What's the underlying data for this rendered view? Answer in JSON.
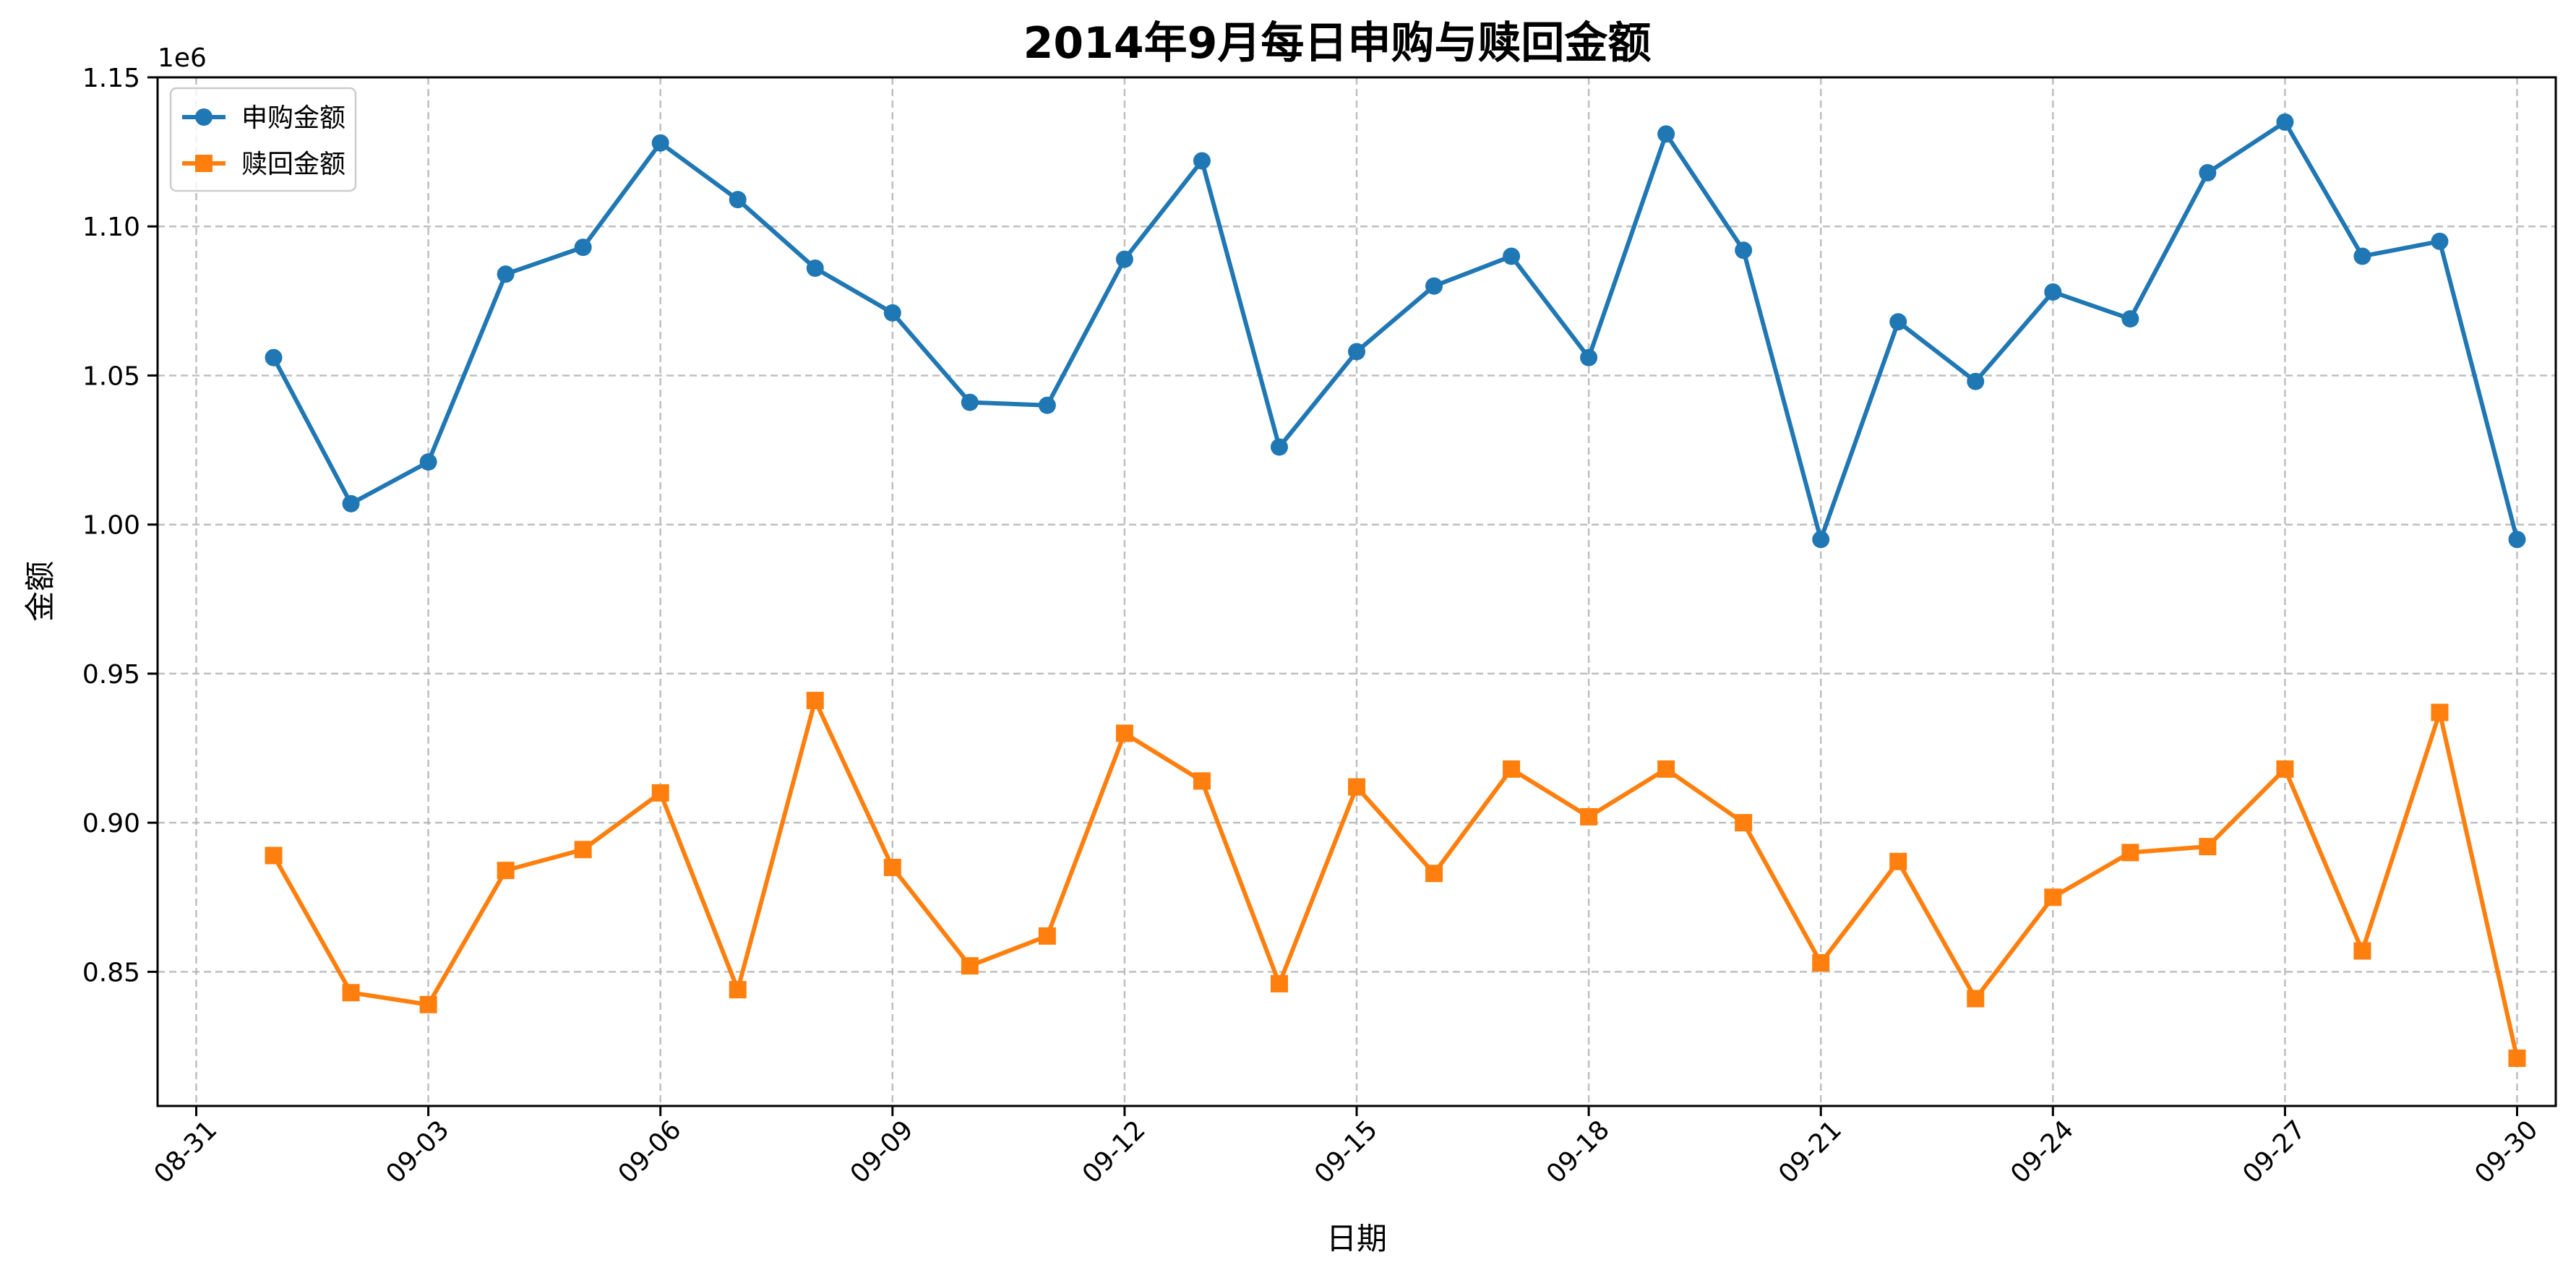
{
  "chart_data": {
    "type": "line",
    "title": "2014年9月每日申购与赎回金额",
    "xlabel": "日期",
    "ylabel": "金额",
    "y_offset_label": "1e6",
    "x_tick_labels": [
      "08-31",
      "09-03",
      "09-06",
      "09-09",
      "09-12",
      "09-15",
      "09-18",
      "09-21",
      "09-24",
      "09-27",
      "09-30"
    ],
    "x_tick_dates": [
      "2014-08-31",
      "2014-09-03",
      "2014-09-06",
      "2014-09-09",
      "2014-09-12",
      "2014-09-15",
      "2014-09-18",
      "2014-09-21",
      "2014-09-24",
      "2014-09-27",
      "2014-09-30"
    ],
    "xlim": [
      "2014-08-30T12:00",
      "2014-09-30T12:00"
    ],
    "y_ticks": [
      0.85,
      0.9,
      0.95,
      1.0,
      1.05,
      1.1,
      1.15
    ],
    "ylim": [
      0.805,
      1.15
    ],
    "grid": true,
    "legend_position": "top-left",
    "x": [
      "2014-09-01",
      "2014-09-02",
      "2014-09-03",
      "2014-09-04",
      "2014-09-05",
      "2014-09-06",
      "2014-09-07",
      "2014-09-08",
      "2014-09-09",
      "2014-09-10",
      "2014-09-11",
      "2014-09-12",
      "2014-09-13",
      "2014-09-14",
      "2014-09-15",
      "2014-09-16",
      "2014-09-17",
      "2014-09-18",
      "2014-09-19",
      "2014-09-20",
      "2014-09-21",
      "2014-09-22",
      "2014-09-23",
      "2014-09-24",
      "2014-09-25",
      "2014-09-26",
      "2014-09-27",
      "2014-09-28",
      "2014-09-29",
      "2014-09-30"
    ],
    "series": [
      {
        "name": "申购金额",
        "color": "#1f77b4",
        "marker": "circle",
        "values": [
          1.056,
          1.007,
          1.021,
          1.084,
          1.093,
          1.128,
          1.109,
          1.086,
          1.071,
          1.041,
          1.04,
          1.089,
          1.122,
          1.026,
          1.058,
          1.08,
          1.09,
          1.056,
          1.131,
          1.092,
          0.995,
          1.068,
          1.048,
          1.078,
          1.069,
          1.118,
          1.135,
          1.09,
          1.095,
          0.995
        ]
      },
      {
        "name": "赎回金额",
        "color": "#ff7f0e",
        "marker": "square",
        "values": [
          0.889,
          0.843,
          0.839,
          0.884,
          0.891,
          0.91,
          0.844,
          0.941,
          0.885,
          0.852,
          0.862,
          0.93,
          0.914,
          0.846,
          0.912,
          0.883,
          0.918,
          0.902,
          0.918,
          0.9,
          0.853,
          0.887,
          0.841,
          0.875,
          0.89,
          0.892,
          0.918,
          0.857,
          0.937,
          0.821
        ]
      }
    ]
  }
}
